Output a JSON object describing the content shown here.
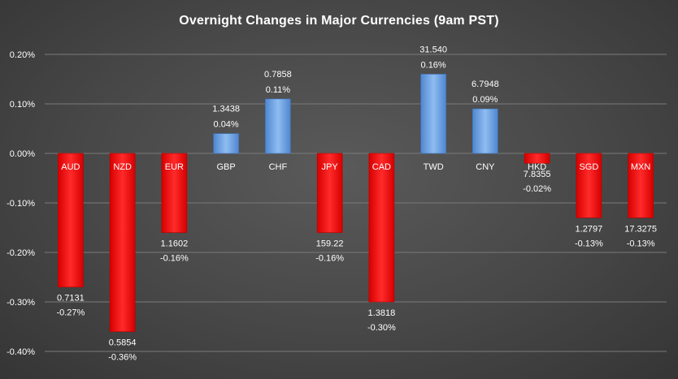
{
  "chart_data": {
    "type": "bar",
    "title": "Overnight Changes in Major Currencies (9am PST)",
    "xlabel": "",
    "ylabel": "",
    "ylim": [
      -0.4,
      0.2
    ],
    "y_ticks": [
      "0.20%",
      "0.10%",
      "0.00%",
      "-0.10%",
      "-0.20%",
      "-0.30%",
      "-0.40%"
    ],
    "y_tick_values": [
      0.2,
      0.1,
      0.0,
      -0.1,
      -0.2,
      -0.3,
      -0.4
    ],
    "grid": "horizontal",
    "categories": [
      "AUD",
      "NZD",
      "EUR",
      "GBP",
      "CHF",
      "JPY",
      "CAD",
      "TWD",
      "CNY",
      "HKD",
      "SGD",
      "MXN"
    ],
    "values": [
      -0.27,
      -0.36,
      -0.16,
      0.04,
      0.11,
      -0.16,
      -0.3,
      0.16,
      0.09,
      -0.02,
      -0.13,
      -0.13
    ],
    "rates": [
      "0.7131",
      "0.5854",
      "1.1602",
      "1.3438",
      "0.7858",
      "159.22",
      "1.3818",
      "31.540",
      "6.7948",
      "7.8355",
      "1.2797",
      "17.3275"
    ],
    "change_labels": [
      "-0.27%",
      "-0.36%",
      "-0.16%",
      "0.04%",
      "0.11%",
      "-0.16%",
      "-0.30%",
      "0.16%",
      "0.09%",
      "-0.02%",
      "-0.13%",
      "-0.13%"
    ],
    "colors": {
      "positive": "#6ea6e6",
      "negative": "#ff1a1a",
      "grid": "#7a7a7a"
    }
  }
}
